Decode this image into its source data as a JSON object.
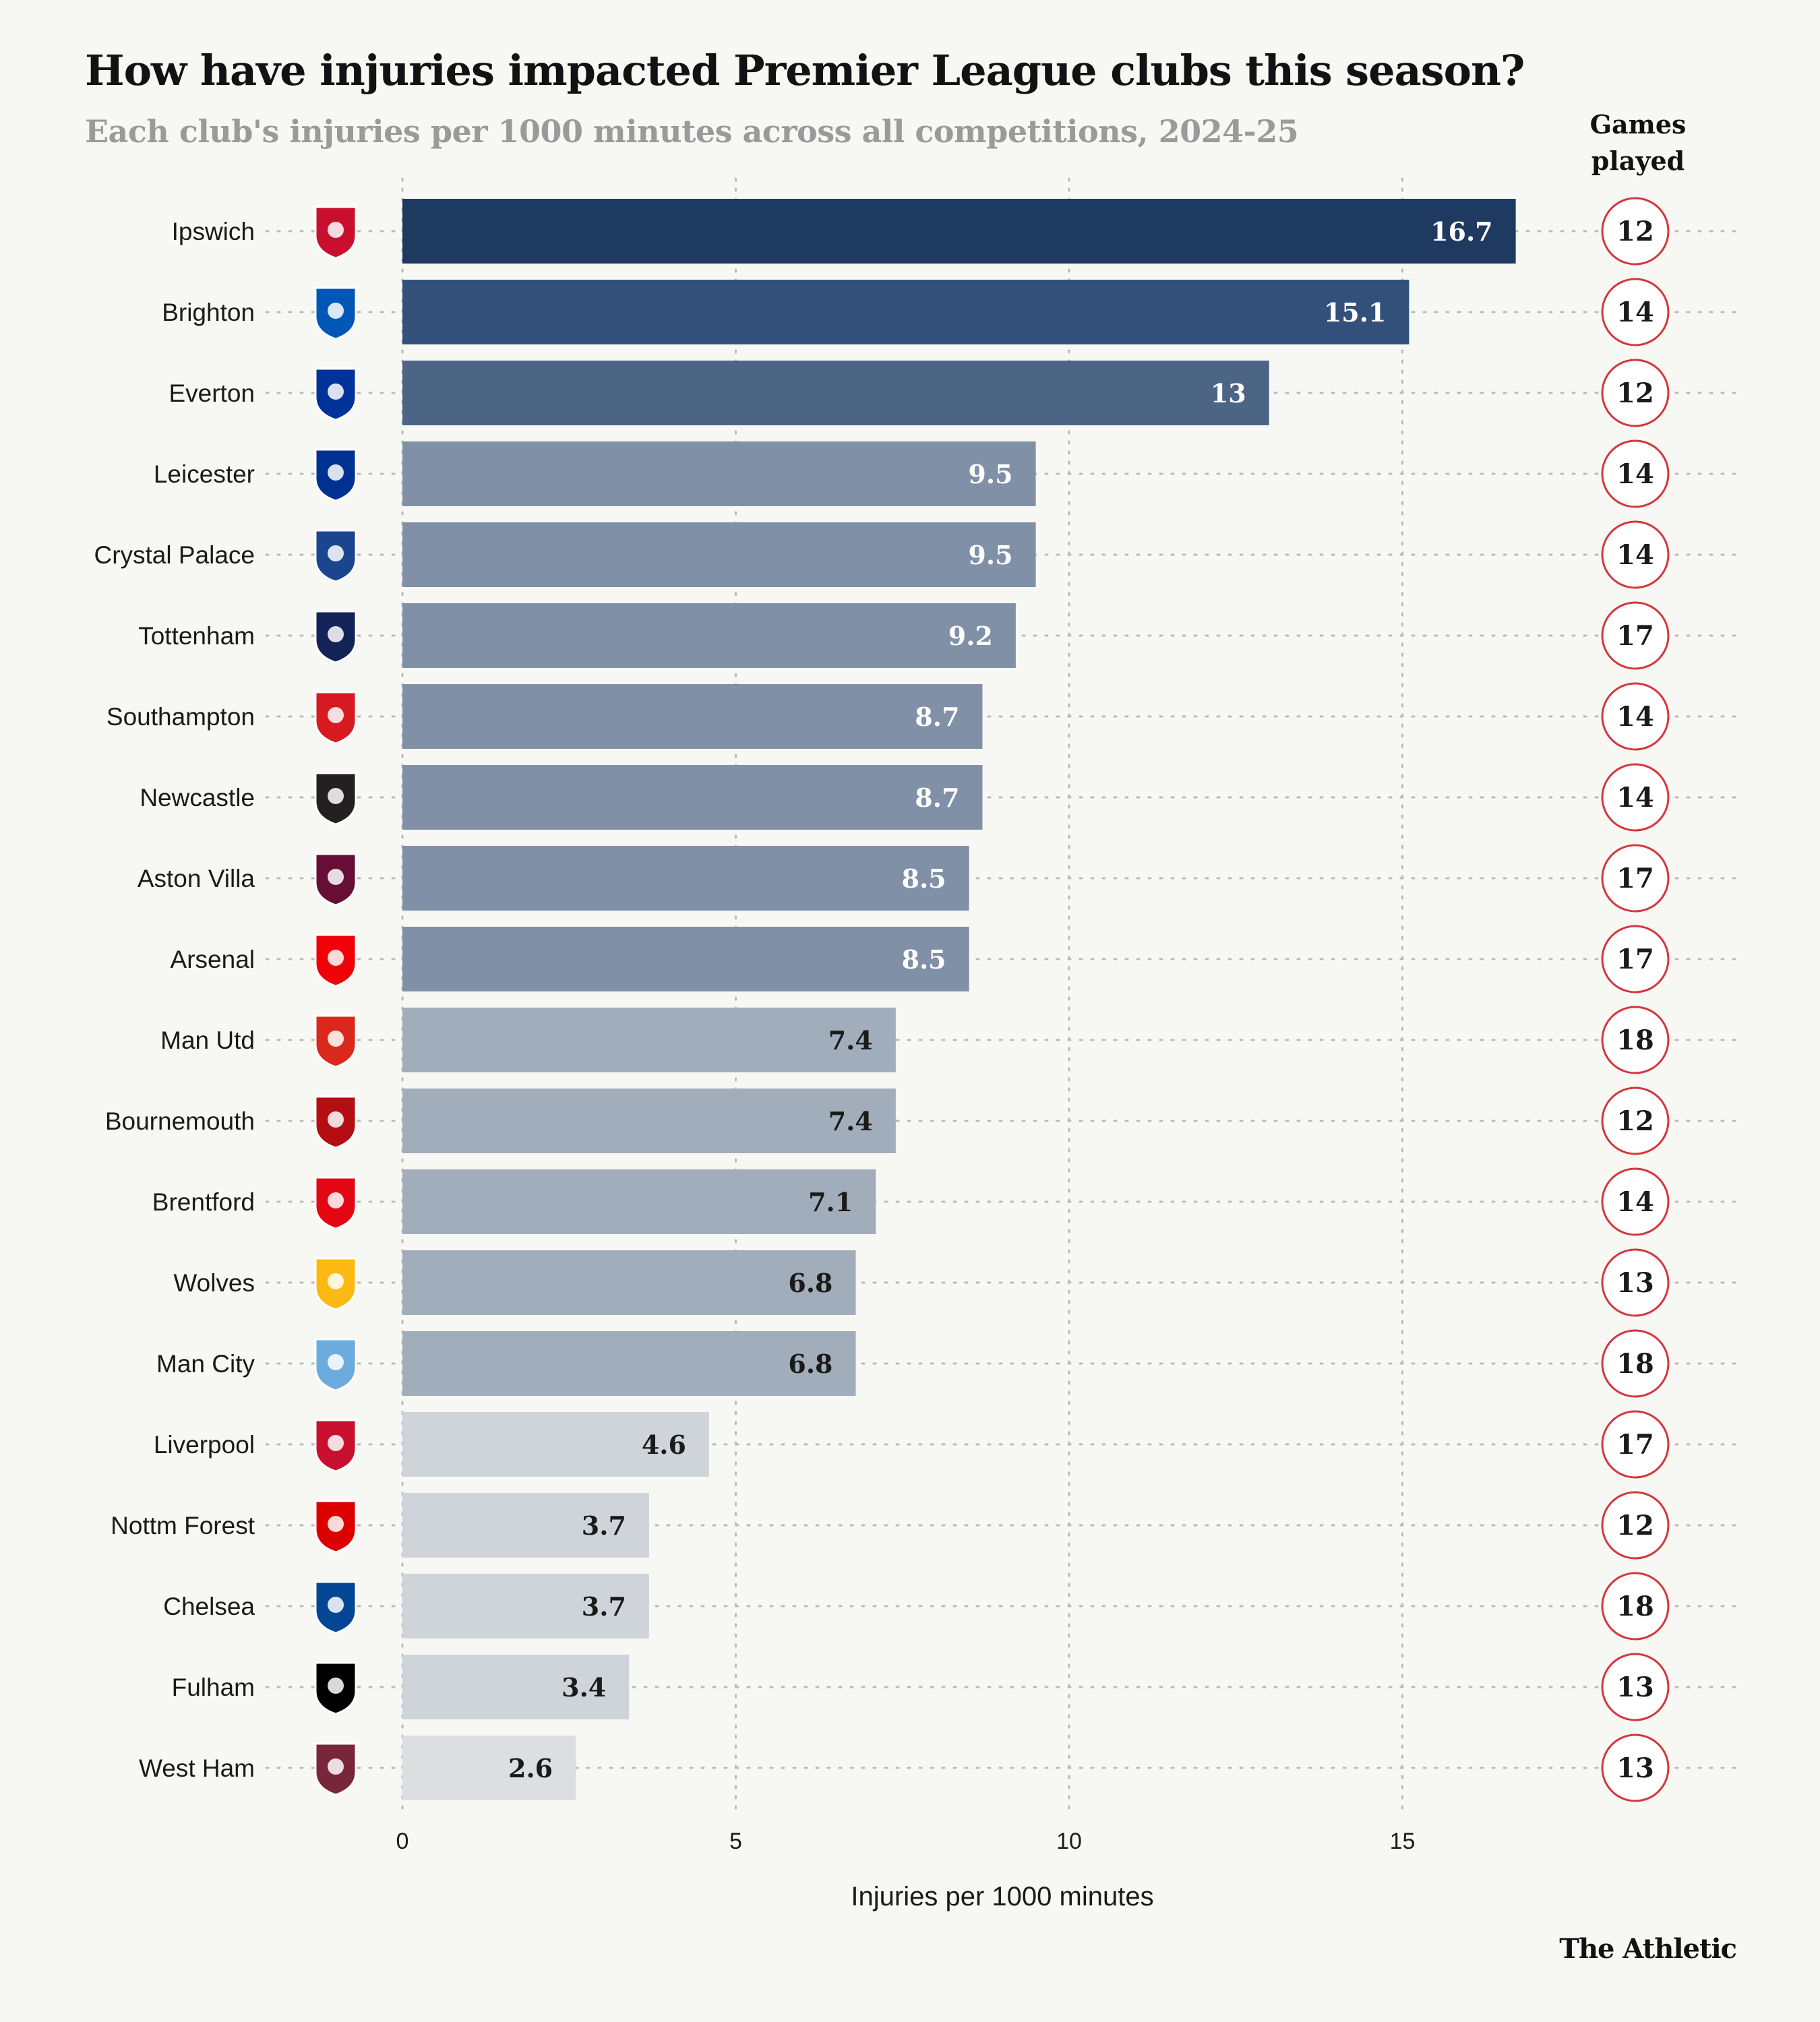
{
  "header": {
    "title": "How have injuries impacted Premier League clubs this season?",
    "subtitle": "Each club's injuries per 1000 minutes across all competitions, 2024-25",
    "games_header_line1": "Games",
    "games_header_line2": "played"
  },
  "brand": "The Athletic",
  "chart_data": {
    "type": "bar",
    "orientation": "horizontal",
    "title": "How have injuries impacted Premier League clubs this season?",
    "subtitle": "Each club's injuries per 1000 minutes across all competitions, 2024-25",
    "xlabel": "Injuries per 1000 minutes",
    "ylabel": "",
    "xlim": [
      0,
      17.6
    ],
    "xticks": [
      0,
      5,
      10,
      15
    ],
    "grid": true,
    "categories": [
      "Ipswich",
      "Brighton",
      "Everton",
      "Leicester",
      "Crystal Palace",
      "Tottenham",
      "Southampton",
      "Newcastle",
      "Aston Villa",
      "Arsenal",
      "Man Utd",
      "Bournemouth",
      "Brentford",
      "Wolves",
      "Man City",
      "Liverpool",
      "Nottm Forest",
      "Chelsea",
      "Fulham",
      "West Ham"
    ],
    "values": [
      16.7,
      15.1,
      13,
      9.5,
      9.5,
      9.2,
      8.7,
      8.7,
      8.5,
      8.5,
      7.4,
      7.4,
      7.1,
      6.8,
      6.8,
      4.6,
      3.7,
      3.7,
      3.4,
      2.6
    ],
    "value_labels": [
      "16.7",
      "15.1",
      "13",
      "9.5",
      "9.5",
      "9.2",
      "8.7",
      "8.7",
      "8.5",
      "8.5",
      "7.4",
      "7.4",
      "7.1",
      "6.8",
      "6.8",
      "4.6",
      "3.7",
      "3.7",
      "3.4",
      "2.6"
    ],
    "games_played": [
      "12",
      "14",
      "12",
      "14",
      "14",
      "17",
      "14",
      "14",
      "17",
      "17",
      "18",
      "12",
      "14",
      "13",
      "18",
      "17",
      "12",
      "18",
      "13",
      "13"
    ],
    "bar_colors": [
      "#1f3a61",
      "#33507a",
      "#4d6585",
      "#8090a6",
      "#8090a6",
      "#8090a6",
      "#8090a6",
      "#8090a6",
      "#8090a6",
      "#8090a6",
      "#a2adbc",
      "#a2adbc",
      "#a2adbc",
      "#a2adbc",
      "#a2adbc",
      "#cfd4db",
      "#cfd4db",
      "#cfd4db",
      "#cfd4db",
      "#dcdee1"
    ],
    "label_colors": [
      "#ffffff",
      "#ffffff",
      "#ffffff",
      "#ffffff",
      "#ffffff",
      "#ffffff",
      "#ffffff",
      "#ffffff",
      "#ffffff",
      "#ffffff",
      "#1a1a1a",
      "#1a1a1a",
      "#1a1a1a",
      "#1a1a1a",
      "#1a1a1a",
      "#1a1a1a",
      "#1a1a1a",
      "#1a1a1a",
      "#1a1a1a",
      "#1a1a1a"
    ],
    "crest_colors": [
      "#c8102e",
      "#0057b8",
      "#003399",
      "#003090",
      "#1b458f",
      "#132257",
      "#d71920",
      "#241f20",
      "#670e36",
      "#ef0107",
      "#da291c",
      "#b50e12",
      "#e30613",
      "#fdb913",
      "#6cabdd",
      "#c8102e",
      "#dd0000",
      "#034694",
      "#000000",
      "#7a263a"
    ]
  },
  "colors": {
    "background": "#f7f7f3",
    "grid": "#b8b8b8",
    "circle_stroke": "#d4363f"
  }
}
